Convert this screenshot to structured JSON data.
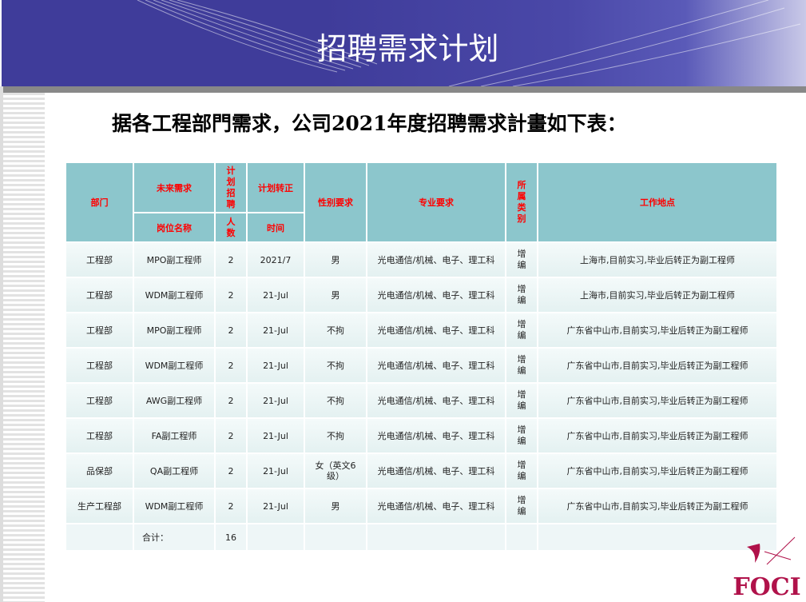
{
  "title": "招聘需求计划",
  "subtitle": "据各工程部門需求，公司2021年度招聘需求計畫如下表：",
  "table": {
    "headers": {
      "dept": "部门",
      "future_need": "未来需求",
      "position": "岗位名称",
      "plan_count_top": "计划招聘",
      "plan_count_bottom": "人数",
      "regular_top": "计划转正",
      "regular_bottom": "时间",
      "gender": "性别要求",
      "major": "专业要求",
      "category": "所属类别",
      "location": "工作地点"
    },
    "rows": [
      {
        "dept": "工程部",
        "position": "MPO副工程师",
        "count": "2",
        "time": "2021/7",
        "gender": "男",
        "major": "光电通信/机械、电子、理工科",
        "category": "增编",
        "location": "上海市,目前实习,毕业后转正为副工程师"
      },
      {
        "dept": "工程部",
        "position": "WDM副工程师",
        "count": "2",
        "time": "21-Jul",
        "gender": "男",
        "major": "光电通信/机械、电子、理工科",
        "category": "增编",
        "location": "上海市,目前实习,毕业后转正为副工程师"
      },
      {
        "dept": "工程部",
        "position": "MPO副工程师",
        "count": "2",
        "time": "21-Jul",
        "gender": "不拘",
        "major": "光电通信/机械、电子、理工科",
        "category": "增编",
        "location": "广东省中山市,目前实习,毕业后转正为副工程师"
      },
      {
        "dept": "工程部",
        "position": "WDM副工程师",
        "count": "2",
        "time": "21-Jul",
        "gender": "不拘",
        "major": "光电通信/机械、电子、理工科",
        "category": "增编",
        "location": "广东省中山市,目前实习,毕业后转正为副工程师"
      },
      {
        "dept": "工程部",
        "position": "AWG副工程师",
        "count": "2",
        "time": "21-Jul",
        "gender": "不拘",
        "major": "光电通信/机械、电子、理工科",
        "category": "增编",
        "location": "广东省中山市,目前实习,毕业后转正为副工程师"
      },
      {
        "dept": "工程部",
        "position": "FA副工程师",
        "count": "2",
        "time": "21-Jul",
        "gender": "不拘",
        "major": "光电通信/机械、电子、理工科",
        "category": "增编",
        "location": "广东省中山市,目前实习,毕业后转正为副工程师"
      },
      {
        "dept": "品保部",
        "position": "QA副工程师",
        "count": "2",
        "time": "21-Jul",
        "gender": "女（英文6级）",
        "major": "光电通信/机械、电子、理工科",
        "category": "增编",
        "location": "广东省中山市,目前实习,毕业后转正为副工程师"
      },
      {
        "dept": "生产工程部",
        "position": "WDM副工程师",
        "count": "2",
        "time": "21-Jul",
        "gender": "男",
        "major": "光电通信/机械、电子、理工科",
        "category": "增编",
        "location": "广东省中山市,目前实习,毕业后转正为副工程师"
      }
    ],
    "total_label": "合计：",
    "total_value": "16"
  },
  "logo_text": "FOCI",
  "colors": {
    "banner": "#3f3c9a",
    "header_cell": "#8cc6cc",
    "header_text": "#ff0000",
    "logo": "#b0124a"
  }
}
